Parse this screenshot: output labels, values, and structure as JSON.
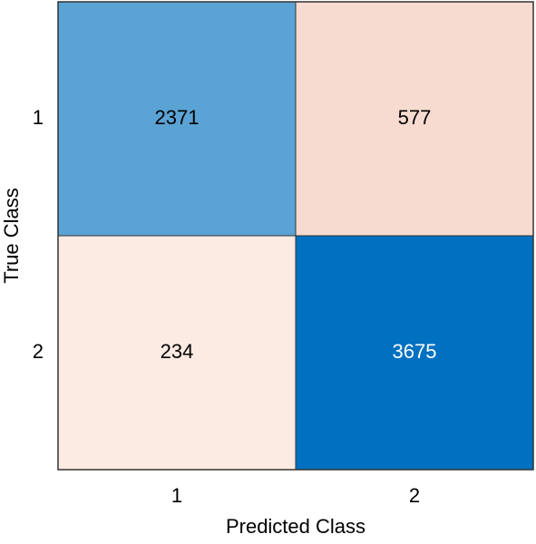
{
  "chart_data": {
    "type": "heatmap",
    "xlabel": "Predicted Class",
    "ylabel": "True Class",
    "x_categories": [
      "1",
      "2"
    ],
    "y_categories": [
      "1",
      "2"
    ],
    "values": [
      [
        2371,
        577
      ],
      [
        234,
        3675
      ]
    ],
    "colors": [
      [
        "#5aa3d4",
        "#f7dbd0"
      ],
      [
        "#fcebe3",
        "#0070c0"
      ]
    ]
  }
}
